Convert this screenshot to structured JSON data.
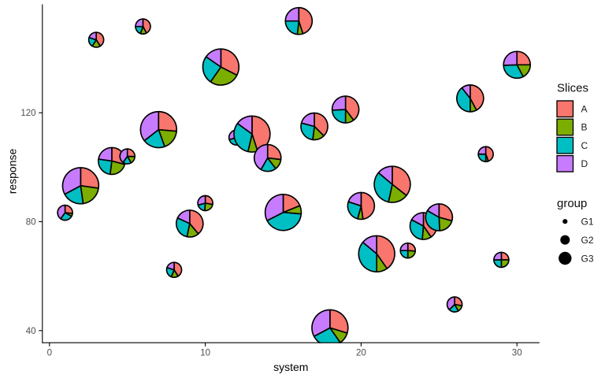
{
  "chart_data": {
    "type": "scatterpie",
    "xlabel": "system",
    "ylabel": "response",
    "x_ticks": [
      "0",
      "10",
      "20",
      "30"
    ],
    "x_tick_values": [
      0,
      10,
      20,
      30
    ],
    "y_ticks": [
      "40",
      "80",
      "120"
    ],
    "y_tick_values": [
      40,
      80,
      120
    ],
    "xlim": [
      -0.45,
      31.45
    ],
    "ylim": [
      35.5,
      159.8
    ],
    "grid": false,
    "legend_position": "right",
    "slice_colors": {
      "A": "#F8766D",
      "B": "#7CAE00",
      "C": "#00BFC4",
      "D": "#C77CFF"
    },
    "outline_color": "#000000",
    "legend": {
      "slices_title": "Slices",
      "slice_labels": [
        "A",
        "B",
        "C",
        "D"
      ],
      "group_title": "group",
      "group_labels": [
        "G1",
        "G2",
        "G3"
      ]
    },
    "pies": [
      {
        "system": 1,
        "response": 83.3,
        "group": "G1",
        "slices": {
          "A": 0.269,
          "B": 0.064,
          "C": 0.267,
          "D": 0.4
        }
      },
      {
        "system": 2,
        "response": 93.2,
        "group": "G3",
        "slices": {
          "A": 0.272,
          "B": 0.206,
          "C": 0.194,
          "D": 0.328
        }
      },
      {
        "system": 3,
        "response": 146.8,
        "group": "G1",
        "slices": {
          "A": 0.408,
          "B": 0.181,
          "C": 0.211,
          "D": 0.2
        }
      },
      {
        "system": 4,
        "response": 102.3,
        "group": "G2",
        "slices": {
          "A": 0.292,
          "B": 0.228,
          "C": 0.252,
          "D": 0.228
        }
      },
      {
        "system": 5,
        "response": 104.0,
        "group": "G1",
        "slices": {
          "A": 0.256,
          "B": 0.161,
          "C": 0.181,
          "D": 0.402
        }
      },
      {
        "system": 6,
        "response": 151.7,
        "group": "G1",
        "slices": {
          "A": 0.422,
          "B": 0.133,
          "C": 0.194,
          "D": 0.251
        }
      },
      {
        "system": 7,
        "response": 113.8,
        "group": "G3",
        "slices": {
          "A": 0.264,
          "B": 0.181,
          "C": 0.2,
          "D": 0.355
        }
      },
      {
        "system": 8,
        "response": 62.3,
        "group": "G1",
        "slices": {
          "A": 0.411,
          "B": 0.15,
          "C": 0.239,
          "D": 0.2
        }
      },
      {
        "system": 9,
        "response": 79.3,
        "group": "G2",
        "slices": {
          "A": 0.389,
          "B": 0.144,
          "C": 0.286,
          "D": 0.181
        }
      },
      {
        "system": 10,
        "response": 86.8,
        "group": "G1",
        "slices": {
          "A": 0.278,
          "B": 0.236,
          "C": 0.194,
          "D": 0.292
        }
      },
      {
        "system": 11,
        "response": 136.8,
        "group": "G3",
        "slices": {
          "A": 0.325,
          "B": 0.272,
          "C": 0.25,
          "D": 0.153
        }
      },
      {
        "system": 12,
        "response": 110.9,
        "group": "G1",
        "slices": {
          "A": 0.28,
          "B": 0.155,
          "C": 0.27,
          "D": 0.295
        }
      },
      {
        "system": 13,
        "response": 112.2,
        "group": "G3",
        "slices": {
          "A": 0.45,
          "B": 0.086,
          "C": 0.314,
          "D": 0.15
        }
      },
      {
        "system": 14,
        "response": 103.4,
        "group": "G2",
        "slices": {
          "A": 0.269,
          "B": 0.128,
          "C": 0.186,
          "D": 0.417
        }
      },
      {
        "system": 15,
        "response": 83.4,
        "group": "G3",
        "slices": {
          "A": 0.189,
          "B": 0.075,
          "C": 0.411,
          "D": 0.325
        }
      },
      {
        "system": 16,
        "response": 153.7,
        "group": "G2",
        "slices": {
          "A": 0.45,
          "B": 0.067,
          "C": 0.233,
          "D": 0.25
        }
      },
      {
        "system": 17,
        "response": 115.0,
        "group": "G2",
        "slices": {
          "A": 0.375,
          "B": 0.144,
          "C": 0.272,
          "D": 0.209
        }
      },
      {
        "system": 18,
        "response": 41.0,
        "group": "G3",
        "slices": {
          "A": 0.297,
          "B": 0.106,
          "C": 0.269,
          "D": 0.328
        }
      },
      {
        "system": 19,
        "response": 121.2,
        "group": "G2",
        "slices": {
          "A": 0.397,
          "B": 0.103,
          "C": 0.242,
          "D": 0.258
        }
      },
      {
        "system": 20,
        "response": 85.8,
        "group": "G2",
        "slices": {
          "A": 0.478,
          "B": 0.064,
          "C": 0.258,
          "D": 0.2
        }
      },
      {
        "system": 21,
        "response": 68.2,
        "group": "G3",
        "slices": {
          "A": 0.403,
          "B": 0.097,
          "C": 0.361,
          "D": 0.139
        }
      },
      {
        "system": 22,
        "response": 93.7,
        "group": "G3",
        "slices": {
          "A": 0.356,
          "B": 0.178,
          "C": 0.328,
          "D": 0.138
        }
      },
      {
        "system": 23,
        "response": 69.4,
        "group": "G1",
        "slices": {
          "A": 0.264,
          "B": 0.236,
          "C": 0.25,
          "D": 0.25
        }
      },
      {
        "system": 24,
        "response": 78.4,
        "group": "G2",
        "slices": {
          "A": 0.403,
          "B": 0.111,
          "C": 0.314,
          "D": 0.172
        }
      },
      {
        "system": 25,
        "response": 81.6,
        "group": "G2",
        "slices": {
          "A": 0.292,
          "B": 0.2,
          "C": 0.342,
          "D": 0.166
        }
      },
      {
        "system": 26,
        "response": 49.6,
        "group": "G1",
        "slices": {
          "A": 0.278,
          "B": 0.139,
          "C": 0.208,
          "D": 0.375
        }
      },
      {
        "system": 27,
        "response": 125.3,
        "group": "G2",
        "slices": {
          "A": 0.422,
          "B": 0.078,
          "C": 0.394,
          "D": 0.106
        }
      },
      {
        "system": 28,
        "response": 104.8,
        "group": "G1",
        "slices": {
          "A": 0.444,
          "B": 0.056,
          "C": 0.25,
          "D": 0.25
        }
      },
      {
        "system": 29,
        "response": 66.0,
        "group": "G1",
        "slices": {
          "A": 0.25,
          "B": 0.25,
          "C": 0.25,
          "D": 0.25
        }
      },
      {
        "system": 30,
        "response": 137.6,
        "group": "G2",
        "slices": {
          "A": 0.25,
          "B": 0.172,
          "C": 0.322,
          "D": 0.256
        }
      }
    ]
  }
}
